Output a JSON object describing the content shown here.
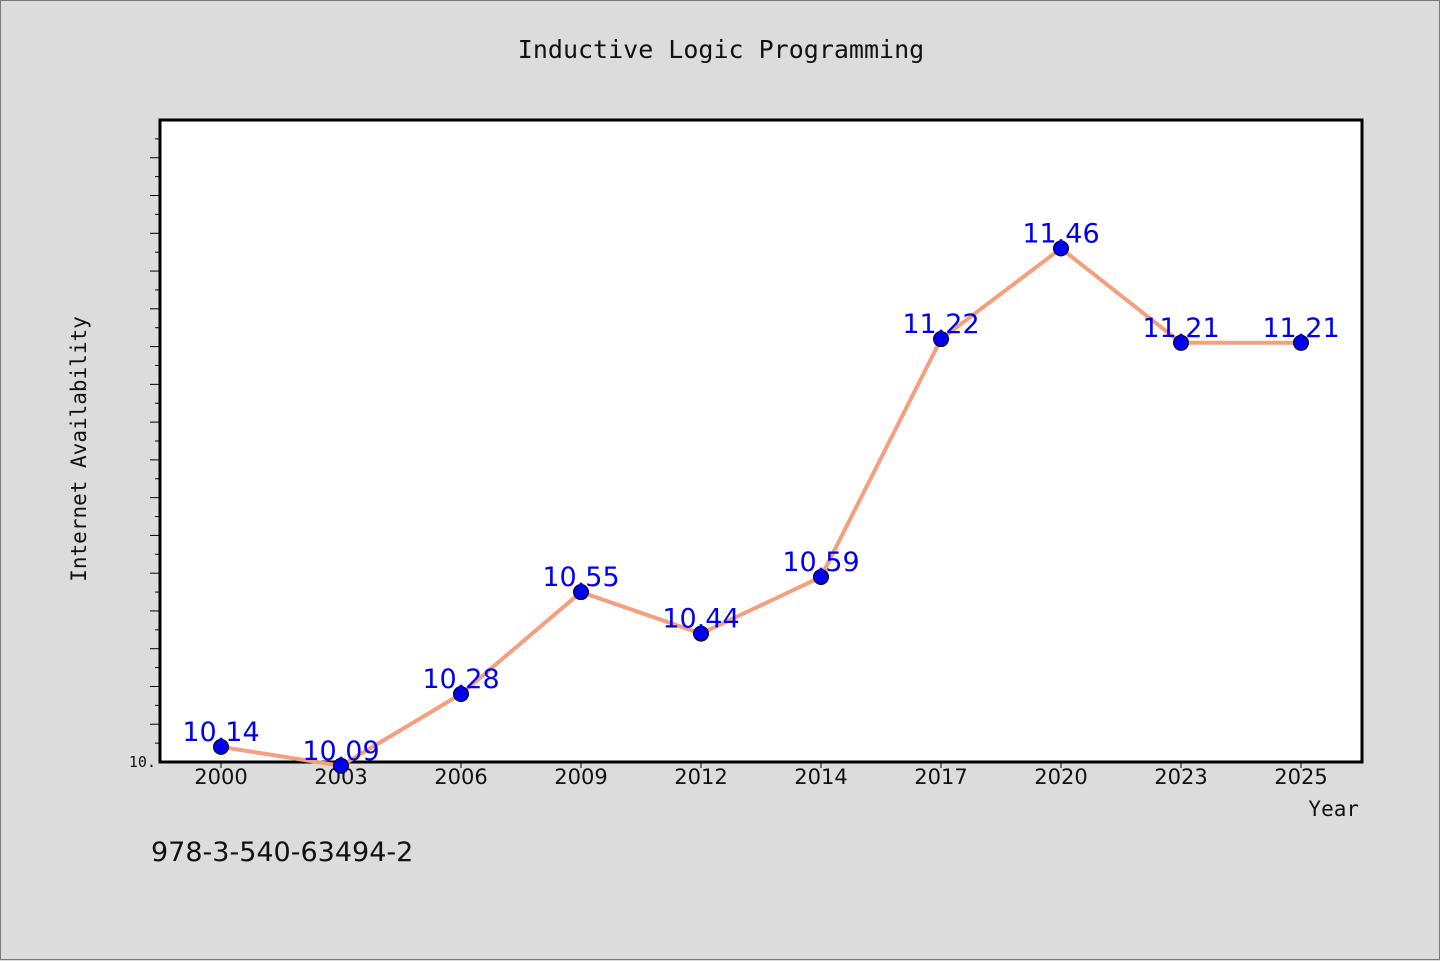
{
  "chart_data": {
    "type": "line",
    "title": "Inductive Logic Programming",
    "xlabel": "Year",
    "ylabel": "Internet Availability",
    "categories": [
      "2000",
      "2003",
      "2006",
      "2009",
      "2012",
      "2014",
      "2017",
      "2020",
      "2023",
      "2025"
    ],
    "series": [
      {
        "values": [
          10.14,
          10.09,
          10.28,
          10.55,
          10.44,
          10.59,
          11.22,
          11.46,
          11.21,
          11.21
        ],
        "line_color": "#f4a07e",
        "marker_color": "#0000ee",
        "label_color": "#0000ee"
      }
    ],
    "ylim": [
      10.1,
      11.8
    ],
    "y_tick_label": "10.",
    "grid": false,
    "legend": "none",
    "plot_background": "#ffffff",
    "figure_background": "#dcdcdc"
  },
  "footer": {
    "isbn": "978-3-540-63494-2"
  }
}
